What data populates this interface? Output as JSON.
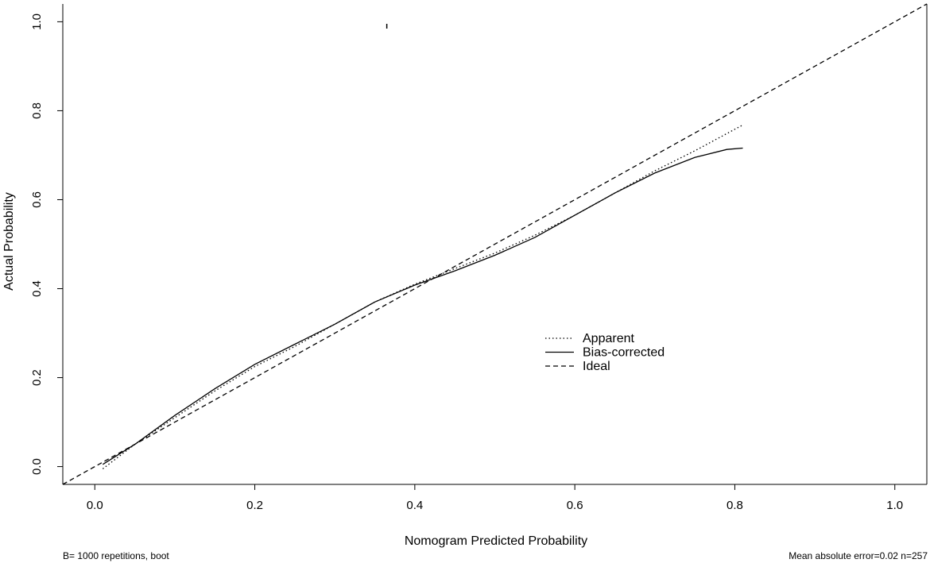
{
  "chart_data": {
    "type": "line",
    "title": "",
    "xlabel": "Nomogram Predicted Probability",
    "ylabel": "Actual Probability",
    "xlim": [
      -0.04,
      1.04
    ],
    "ylim": [
      -0.04,
      1.04
    ],
    "xticks": [
      "0.0",
      "0.2",
      "0.4",
      "0.6",
      "0.8",
      "1.0"
    ],
    "yticks": [
      "0.0",
      "0.2",
      "0.4",
      "0.6",
      "0.8",
      "1.0"
    ],
    "grid": false,
    "legend_position": "center-right",
    "series": [
      {
        "name": "Apparent",
        "style": "dotted",
        "x": [
          0.01,
          0.05,
          0.1,
          0.15,
          0.2,
          0.25,
          0.3,
          0.35,
          0.4,
          0.45,
          0.5,
          0.55,
          0.6,
          0.65,
          0.7,
          0.75,
          0.81
        ],
        "y": [
          -0.005,
          0.05,
          0.11,
          0.17,
          0.225,
          0.27,
          0.32,
          0.37,
          0.41,
          0.445,
          0.48,
          0.52,
          0.565,
          0.615,
          0.665,
          0.71,
          0.768
        ]
      },
      {
        "name": "Bias-corrected",
        "style": "solid",
        "x": [
          0.01,
          0.05,
          0.1,
          0.15,
          0.2,
          0.25,
          0.3,
          0.35,
          0.4,
          0.45,
          0.5,
          0.55,
          0.6,
          0.65,
          0.7,
          0.75,
          0.79,
          0.81
        ],
        "y": [
          0.005,
          0.05,
          0.115,
          0.175,
          0.23,
          0.275,
          0.32,
          0.37,
          0.408,
          0.44,
          0.475,
          0.515,
          0.565,
          0.615,
          0.66,
          0.695,
          0.713,
          0.716
        ]
      },
      {
        "name": "Ideal",
        "style": "dashed",
        "x": [
          -0.04,
          1.04
        ],
        "y": [
          -0.04,
          1.04
        ]
      }
    ],
    "annotations": {
      "left": "B= 1000 repetitions, boot",
      "right": "Mean absolute error=0.02 n=257"
    },
    "rug_marks": [
      {
        "x": 0.365,
        "y": 0.99
      }
    ]
  }
}
